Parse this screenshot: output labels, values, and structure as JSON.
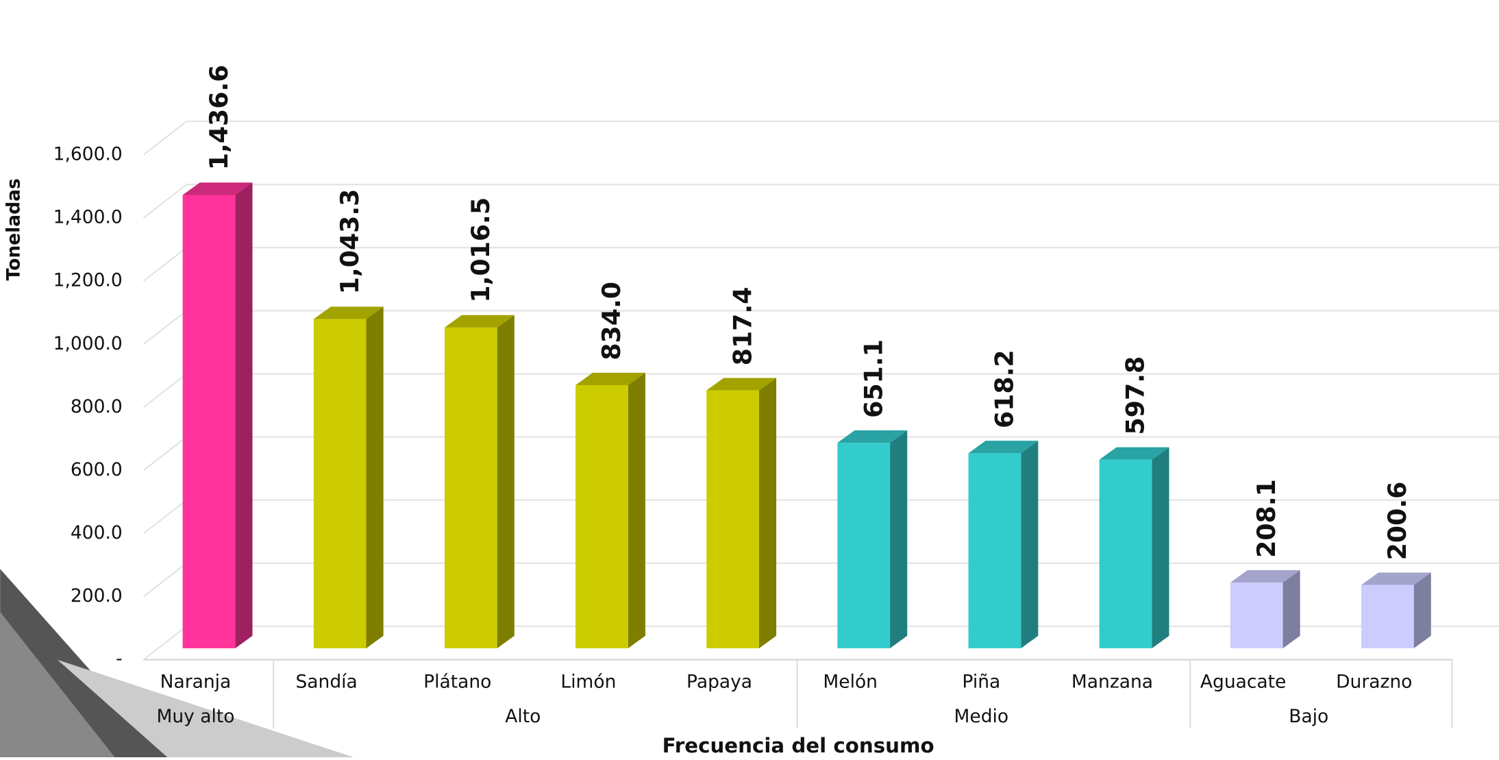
{
  "chart_data": {
    "type": "bar3d",
    "y_label": "Toneladas",
    "x_label": "Frecuencia  del consumo",
    "categories": [
      "Naranja",
      "Sandía",
      "Plátano",
      "Limón",
      "Papaya",
      "Melón",
      "Piña",
      "Manzana",
      "Aguacate",
      "Durazno"
    ],
    "groups": [
      "Muy alto",
      "Alto",
      "Medio",
      "Bajo"
    ],
    "values": [
      1436.6,
      1043.3,
      1016.5,
      834.0,
      817.4,
      651.1,
      618.2,
      597.8,
      208.1,
      200.6
    ],
    "value_labels": [
      "1,436.6",
      "1,043.3",
      "1,016.5",
      "834.0",
      "817.4",
      "651.1",
      "618.2",
      "597.8",
      "208.1",
      "200.6"
    ],
    "colors": [
      "#ff3399",
      "#cccc00",
      "#cccc00",
      "#cccc00",
      "#cccc00",
      "#33cccc",
      "#33cccc",
      "#33cccc",
      "#ccccff",
      "#ccccff"
    ],
    "ylim": [
      0,
      1600
    ],
    "yticks": [
      {
        "value": 0,
        "label": "-"
      },
      {
        "value": 200,
        "label": "200.0"
      },
      {
        "value": 400,
        "label": "400.0"
      },
      {
        "value": 600,
        "label": "600.0"
      },
      {
        "value": 800,
        "label": "800.0"
      },
      {
        "value": 1000,
        "label": "1,000.0"
      },
      {
        "value": 1200,
        "label": "1,200.0"
      },
      {
        "value": 1400,
        "label": "1,400.0"
      },
      {
        "value": 1600,
        "label": "1,600.0"
      }
    ],
    "grid": true
  }
}
